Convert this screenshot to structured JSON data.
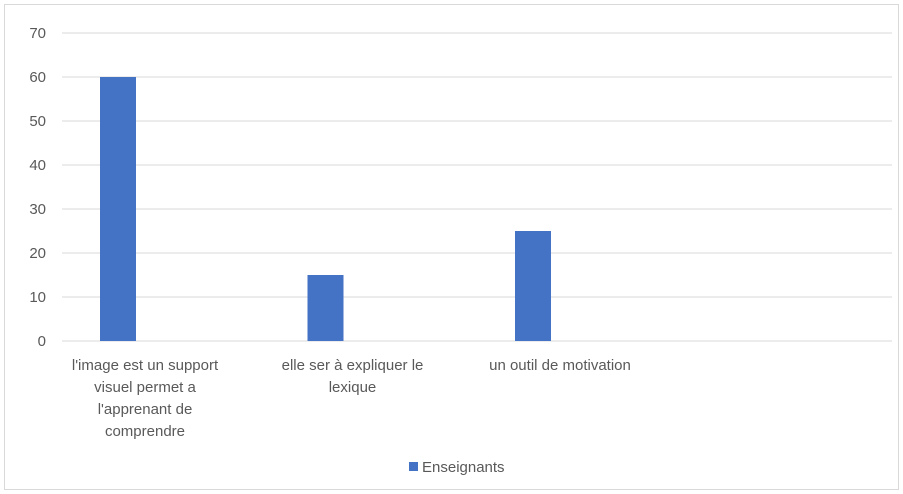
{
  "chart_data": {
    "type": "bar",
    "categories": [
      [
        "l'image est un support",
        "visuel permet a",
        "l'apprenant de",
        "comprendre"
      ],
      [
        "elle ser à expliquer le",
        "lexique"
      ],
      [
        "un outil de motivation"
      ],
      [
        ""
      ]
    ],
    "series": [
      {
        "name": "Enseignants",
        "values": [
          60,
          15,
          25,
          null
        ],
        "color": "#4472c4"
      }
    ],
    "ylim": [
      0,
      70
    ],
    "yticks": [
      0,
      10,
      20,
      30,
      40,
      50,
      60,
      70
    ],
    "grid": true,
    "legend": "bottom",
    "colors": {
      "grid": "#d9d9d9",
      "axis": "#d9d9d9",
      "text": "#595959"
    }
  }
}
